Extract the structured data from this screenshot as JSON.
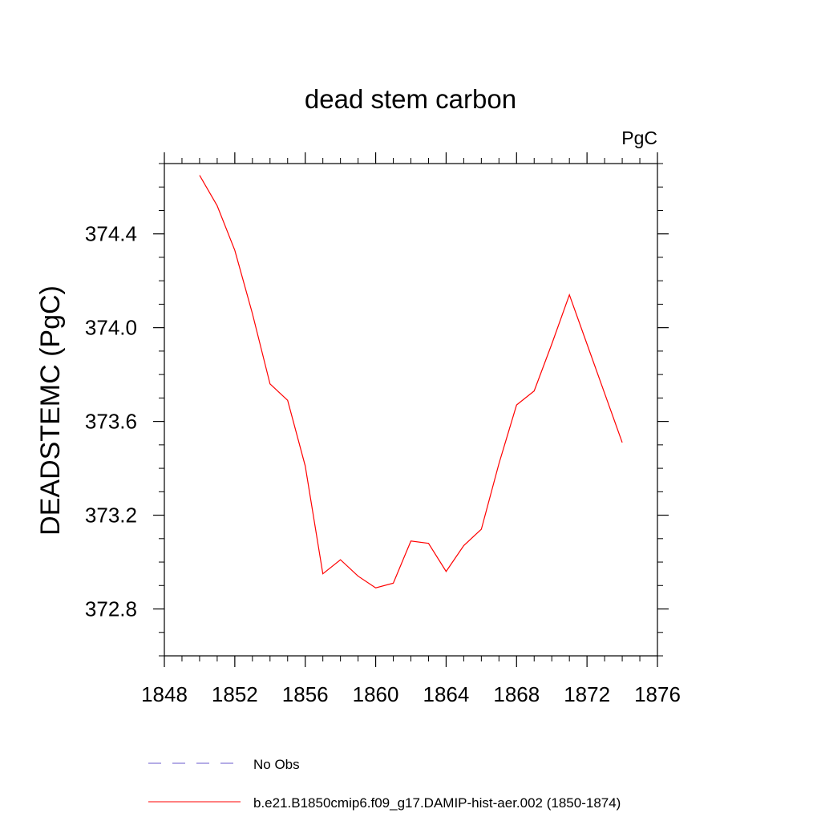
{
  "chart_data": {
    "type": "line",
    "title": "dead stem carbon",
    "units_label": "PgC",
    "ylabel": "DEADSTEMC  (PgC)",
    "xlabel": "",
    "xlim": [
      1848,
      1876
    ],
    "ylim": [
      372.6,
      374.7
    ],
    "x_ticks": [
      1848,
      1852,
      1856,
      1860,
      1864,
      1868,
      1872,
      1876
    ],
    "x_tick_labels": [
      "1848",
      "1852",
      "1856",
      "1860",
      "1864",
      "1868",
      "1872",
      "1876"
    ],
    "y_ticks": [
      372.8,
      373.2,
      373.6,
      374.0,
      374.4
    ],
    "y_tick_labels": [
      "372.8",
      "373.2",
      "373.6",
      "374.0",
      "374.4"
    ],
    "grid": false,
    "series": [
      {
        "name": "b.e21.B1850cmip6.f09_g17.DAMIP-hist-aer.002 (1850-1874)",
        "color": "#ff0000",
        "dash": "solid",
        "x": [
          1850,
          1851,
          1852,
          1853,
          1854,
          1855,
          1856,
          1857,
          1858,
          1859,
          1860,
          1861,
          1862,
          1863,
          1864,
          1865,
          1866,
          1867,
          1868,
          1869,
          1870,
          1871,
          1872,
          1873,
          1874
        ],
        "y": [
          374.65,
          374.52,
          374.33,
          374.06,
          373.76,
          373.69,
          373.41,
          372.95,
          373.01,
          372.94,
          372.89,
          372.91,
          373.09,
          373.08,
          372.96,
          373.07,
          373.14,
          373.42,
          373.67,
          373.73,
          373.93,
          374.14,
          373.93,
          373.72,
          373.51
        ]
      }
    ],
    "legend": {
      "placement": "bottom",
      "entries": [
        {
          "label": "No Obs",
          "color": "#6a5acd",
          "dash": "dashed"
        },
        {
          "label": "b.e21.B1850cmip6.f09_g17.DAMIP-hist-aer.002 (1850-1874)",
          "color": "#ff0000",
          "dash": "solid"
        }
      ]
    }
  }
}
